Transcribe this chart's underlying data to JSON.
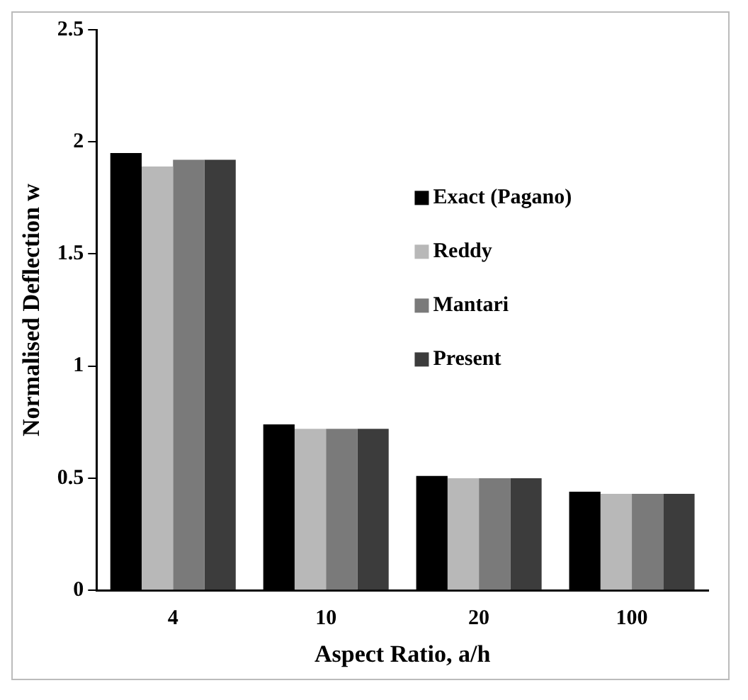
{
  "chart_data": {
    "type": "bar",
    "xlabel": "Aspect Ratio, a/h",
    "ylabel": "Normalised Deflection w",
    "categories": [
      "4",
      "10",
      "20",
      "100"
    ],
    "series": [
      {
        "name": "Exact (Pagano)",
        "color": "#000000",
        "values": [
          1.95,
          0.74,
          0.51,
          0.44
        ]
      },
      {
        "name": "Reddy",
        "color": "#b8b8b8",
        "values": [
          1.89,
          0.72,
          0.5,
          0.43
        ]
      },
      {
        "name": "Mantari",
        "color": "#7a7a7a",
        "values": [
          1.92,
          0.72,
          0.5,
          0.43
        ]
      },
      {
        "name": "Present",
        "color": "#3c3c3c",
        "values": [
          1.92,
          0.72,
          0.5,
          0.43
        ]
      }
    ],
    "ylim": [
      0,
      2.5
    ],
    "yticks": [
      0,
      0.5,
      1,
      1.5,
      2,
      2.5
    ],
    "grid": false,
    "legend": "top right"
  }
}
